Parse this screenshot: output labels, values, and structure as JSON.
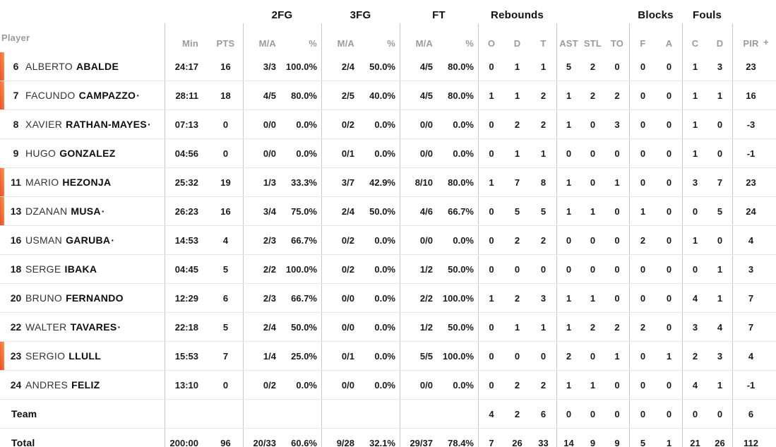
{
  "table": {
    "player_header": "Player",
    "groups": [
      "2FG",
      "3FG",
      "FT",
      "Rebounds",
      "Blocks",
      "Fouls"
    ],
    "sub_headers": [
      "Min",
      "PTS",
      "M/A",
      "%",
      "M/A",
      "%",
      "M/A",
      "%",
      "O",
      "D",
      "T",
      "AST",
      "STL",
      "TO",
      "F",
      "A",
      "C",
      "D",
      "PIR"
    ],
    "plus_minus_partial": "+",
    "starter_dot": "·",
    "accent": {
      "oncourt_gradient_start": "#ee4b2a",
      "oncourt_gradient_end": "#f9994f"
    },
    "rows": [
      {
        "num": "6",
        "first": "ALBERTO",
        "last": "ABALDE",
        "starter": false,
        "oncourt": true,
        "min": "24:17",
        "pts": "16",
        "fg2_ma": "3/3",
        "fg2_pct": "100.0%",
        "fg3_ma": "2/4",
        "fg3_pct": "50.0%",
        "ft_ma": "4/5",
        "ft_pct": "80.0%",
        "reb_o": "0",
        "reb_d": "1",
        "reb_t": "1",
        "ast": "5",
        "stl": "2",
        "to": "0",
        "blk_f": "0",
        "blk_a": "0",
        "foul_c": "1",
        "foul_d": "3",
        "pir": "23"
      },
      {
        "num": "7",
        "first": "FACUNDO",
        "last": "CAMPAZZO",
        "starter": true,
        "oncourt": true,
        "min": "28:11",
        "pts": "18",
        "fg2_ma": "4/5",
        "fg2_pct": "80.0%",
        "fg3_ma": "2/5",
        "fg3_pct": "40.0%",
        "ft_ma": "4/5",
        "ft_pct": "80.0%",
        "reb_o": "1",
        "reb_d": "1",
        "reb_t": "2",
        "ast": "1",
        "stl": "2",
        "to": "2",
        "blk_f": "0",
        "blk_a": "0",
        "foul_c": "1",
        "foul_d": "1",
        "pir": "16"
      },
      {
        "num": "8",
        "first": "XAVIER",
        "last": "RATHAN-MAYES",
        "starter": true,
        "oncourt": false,
        "min": "07:13",
        "pts": "0",
        "fg2_ma": "0/0",
        "fg2_pct": "0.0%",
        "fg3_ma": "0/2",
        "fg3_pct": "0.0%",
        "ft_ma": "0/0",
        "ft_pct": "0.0%",
        "reb_o": "0",
        "reb_d": "2",
        "reb_t": "2",
        "ast": "1",
        "stl": "0",
        "to": "3",
        "blk_f": "0",
        "blk_a": "0",
        "foul_c": "1",
        "foul_d": "0",
        "pir": "-3"
      },
      {
        "num": "9",
        "first": "HUGO",
        "last": "GONZALEZ",
        "starter": false,
        "oncourt": false,
        "min": "04:56",
        "pts": "0",
        "fg2_ma": "0/0",
        "fg2_pct": "0.0%",
        "fg3_ma": "0/1",
        "fg3_pct": "0.0%",
        "ft_ma": "0/0",
        "ft_pct": "0.0%",
        "reb_o": "0",
        "reb_d": "1",
        "reb_t": "1",
        "ast": "0",
        "stl": "0",
        "to": "0",
        "blk_f": "0",
        "blk_a": "0",
        "foul_c": "1",
        "foul_d": "0",
        "pir": "-1"
      },
      {
        "num": "11",
        "first": "MARIO",
        "last": "HEZONJA",
        "starter": false,
        "oncourt": true,
        "min": "25:32",
        "pts": "19",
        "fg2_ma": "1/3",
        "fg2_pct": "33.3%",
        "fg3_ma": "3/7",
        "fg3_pct": "42.9%",
        "ft_ma": "8/10",
        "ft_pct": "80.0%",
        "reb_o": "1",
        "reb_d": "7",
        "reb_t": "8",
        "ast": "1",
        "stl": "0",
        "to": "1",
        "blk_f": "0",
        "blk_a": "0",
        "foul_c": "3",
        "foul_d": "7",
        "pir": "23"
      },
      {
        "num": "13",
        "first": "DZANAN",
        "last": "MUSA",
        "starter": true,
        "oncourt": true,
        "min": "26:23",
        "pts": "16",
        "fg2_ma": "3/4",
        "fg2_pct": "75.0%",
        "fg3_ma": "2/4",
        "fg3_pct": "50.0%",
        "ft_ma": "4/6",
        "ft_pct": "66.7%",
        "reb_o": "0",
        "reb_d": "5",
        "reb_t": "5",
        "ast": "1",
        "stl": "1",
        "to": "0",
        "blk_f": "1",
        "blk_a": "0",
        "foul_c": "0",
        "foul_d": "5",
        "pir": "24"
      },
      {
        "num": "16",
        "first": "USMAN",
        "last": "GARUBA",
        "starter": true,
        "oncourt": false,
        "min": "14:53",
        "pts": "4",
        "fg2_ma": "2/3",
        "fg2_pct": "66.7%",
        "fg3_ma": "0/2",
        "fg3_pct": "0.0%",
        "ft_ma": "0/0",
        "ft_pct": "0.0%",
        "reb_o": "0",
        "reb_d": "2",
        "reb_t": "2",
        "ast": "0",
        "stl": "0",
        "to": "0",
        "blk_f": "2",
        "blk_a": "0",
        "foul_c": "1",
        "foul_d": "0",
        "pir": "4"
      },
      {
        "num": "18",
        "first": "SERGE",
        "last": "IBAKA",
        "starter": false,
        "oncourt": false,
        "min": "04:45",
        "pts": "5",
        "fg2_ma": "2/2",
        "fg2_pct": "100.0%",
        "fg3_ma": "0/2",
        "fg3_pct": "0.0%",
        "ft_ma": "1/2",
        "ft_pct": "50.0%",
        "reb_o": "0",
        "reb_d": "0",
        "reb_t": "0",
        "ast": "0",
        "stl": "0",
        "to": "0",
        "blk_f": "0",
        "blk_a": "0",
        "foul_c": "0",
        "foul_d": "1",
        "pir": "3"
      },
      {
        "num": "20",
        "first": "BRUNO",
        "last": "FERNANDO",
        "starter": false,
        "oncourt": false,
        "min": "12:29",
        "pts": "6",
        "fg2_ma": "2/3",
        "fg2_pct": "66.7%",
        "fg3_ma": "0/0",
        "fg3_pct": "0.0%",
        "ft_ma": "2/2",
        "ft_pct": "100.0%",
        "reb_o": "1",
        "reb_d": "2",
        "reb_t": "3",
        "ast": "1",
        "stl": "1",
        "to": "0",
        "blk_f": "0",
        "blk_a": "0",
        "foul_c": "4",
        "foul_d": "1",
        "pir": "7"
      },
      {
        "num": "22",
        "first": "WALTER",
        "last": "TAVARES",
        "starter": true,
        "oncourt": false,
        "min": "22:18",
        "pts": "5",
        "fg2_ma": "2/4",
        "fg2_pct": "50.0%",
        "fg3_ma": "0/0",
        "fg3_pct": "0.0%",
        "ft_ma": "1/2",
        "ft_pct": "50.0%",
        "reb_o": "0",
        "reb_d": "1",
        "reb_t": "1",
        "ast": "1",
        "stl": "2",
        "to": "2",
        "blk_f": "2",
        "blk_a": "0",
        "foul_c": "3",
        "foul_d": "4",
        "pir": "7"
      },
      {
        "num": "23",
        "first": "SERGIO",
        "last": "LLULL",
        "starter": false,
        "oncourt": true,
        "min": "15:53",
        "pts": "7",
        "fg2_ma": "1/4",
        "fg2_pct": "25.0%",
        "fg3_ma": "0/1",
        "fg3_pct": "0.0%",
        "ft_ma": "5/5",
        "ft_pct": "100.0%",
        "reb_o": "0",
        "reb_d": "0",
        "reb_t": "0",
        "ast": "2",
        "stl": "0",
        "to": "1",
        "blk_f": "0",
        "blk_a": "1",
        "foul_c": "2",
        "foul_d": "3",
        "pir": "4"
      },
      {
        "num": "24",
        "first": "ANDRES",
        "last": "FELIZ",
        "starter": false,
        "oncourt": false,
        "min": "13:10",
        "pts": "0",
        "fg2_ma": "0/2",
        "fg2_pct": "0.0%",
        "fg3_ma": "0/0",
        "fg3_pct": "0.0%",
        "ft_ma": "0/0",
        "ft_pct": "0.0%",
        "reb_o": "0",
        "reb_d": "2",
        "reb_t": "2",
        "ast": "1",
        "stl": "1",
        "to": "0",
        "blk_f": "0",
        "blk_a": "0",
        "foul_c": "4",
        "foul_d": "1",
        "pir": "-1"
      },
      {
        "label": "Team",
        "min": "",
        "pts": "",
        "fg2_ma": "",
        "fg2_pct": "",
        "fg3_ma": "",
        "fg3_pct": "",
        "ft_ma": "",
        "ft_pct": "",
        "reb_o": "4",
        "reb_d": "2",
        "reb_t": "6",
        "ast": "0",
        "stl": "0",
        "to": "0",
        "blk_f": "0",
        "blk_a": "0",
        "foul_c": "0",
        "foul_d": "0",
        "pir": "6"
      },
      {
        "label": "Total",
        "min": "200:00",
        "pts": "96",
        "fg2_ma": "20/33",
        "fg2_pct": "60.6%",
        "fg3_ma": "9/28",
        "fg3_pct": "32.1%",
        "ft_ma": "29/37",
        "ft_pct": "78.4%",
        "reb_o": "7",
        "reb_d": "26",
        "reb_t": "33",
        "ast": "14",
        "stl": "9",
        "to": "9",
        "blk_f": "5",
        "blk_a": "1",
        "foul_c": "21",
        "foul_d": "26",
        "pir": "112"
      }
    ]
  }
}
